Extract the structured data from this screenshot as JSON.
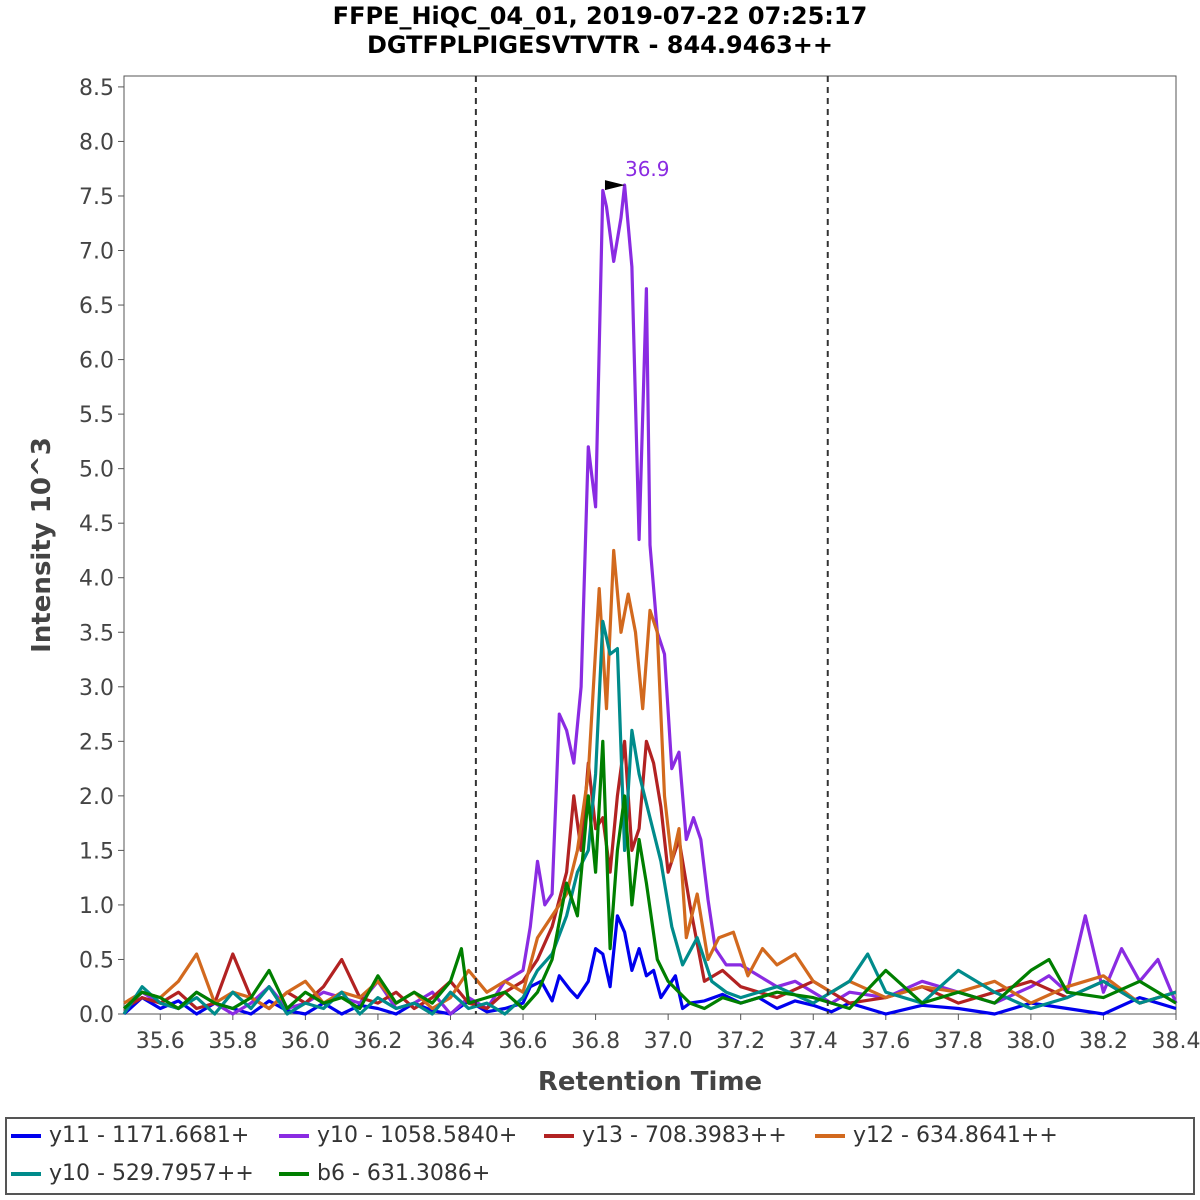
{
  "header": {
    "title_line1": "FFPE_HiQC_04_01, 2019-07-22 07:25:17",
    "title_line2": "DGTFPLPIGESVTVTR - 844.9463++"
  },
  "chart_data": {
    "type": "line",
    "xlabel": "Retention Time",
    "ylabel": "Intensity 10^3",
    "xlim": [
      35.5,
      38.4
    ],
    "ylim": [
      0,
      8.6
    ],
    "x_ticks": [
      "35.6",
      "35.8",
      "36.0",
      "36.2",
      "36.4",
      "36.6",
      "36.8",
      "37.0",
      "37.2",
      "37.4",
      "37.6",
      "37.8",
      "38.0",
      "38.2",
      "38.4"
    ],
    "y_ticks": [
      "0.0",
      "0.5",
      "1.0",
      "1.5",
      "2.0",
      "2.5",
      "3.0",
      "3.5",
      "4.0",
      "4.5",
      "5.0",
      "5.5",
      "6.0",
      "6.5",
      "7.0",
      "7.5",
      "8.0",
      "8.5"
    ],
    "boundaries": [
      36.47,
      37.44
    ],
    "peak_annotation": {
      "x": 36.87,
      "y": 7.6,
      "label": "36.9"
    },
    "grid": false,
    "legend_position": "bottom",
    "series": [
      {
        "name": "y11 - 1171.6681+",
        "color": "#0000ee",
        "x": [
          35.5,
          35.55,
          35.6,
          35.65,
          35.7,
          35.75,
          35.8,
          35.85,
          35.9,
          35.95,
          36.0,
          36.05,
          36.1,
          36.15,
          36.2,
          36.25,
          36.3,
          36.35,
          36.4,
          36.45,
          36.5,
          36.55,
          36.6,
          36.62,
          36.65,
          36.68,
          36.7,
          36.73,
          36.75,
          36.78,
          36.8,
          36.82,
          36.84,
          36.86,
          36.88,
          36.9,
          36.92,
          36.94,
          36.96,
          36.98,
          37.0,
          37.02,
          37.04,
          37.06,
          37.1,
          37.15,
          37.2,
          37.25,
          37.3,
          37.35,
          37.4,
          37.45,
          37.5,
          37.6,
          37.7,
          37.8,
          37.9,
          38.0,
          38.1,
          38.2,
          38.3,
          38.4
        ],
        "values": [
          0.0,
          0.15,
          0.05,
          0.12,
          0.0,
          0.1,
          0.05,
          0.0,
          0.12,
          0.03,
          0.0,
          0.1,
          0.0,
          0.08,
          0.05,
          0.0,
          0.1,
          0.03,
          0.0,
          0.12,
          0.02,
          0.05,
          0.1,
          0.25,
          0.3,
          0.12,
          0.35,
          0.22,
          0.15,
          0.3,
          0.6,
          0.55,
          0.25,
          0.9,
          0.75,
          0.4,
          0.6,
          0.35,
          0.4,
          0.15,
          0.25,
          0.35,
          0.05,
          0.1,
          0.12,
          0.18,
          0.1,
          0.15,
          0.05,
          0.12,
          0.08,
          0.02,
          0.1,
          0.0,
          0.08,
          0.05,
          0.0,
          0.1,
          0.05,
          0.0,
          0.15,
          0.05
        ]
      },
      {
        "name": "y10 - 1058.5840+",
        "color": "#8a2be2",
        "x": [
          35.5,
          35.55,
          35.6,
          35.65,
          35.7,
          35.75,
          35.8,
          35.85,
          35.9,
          35.95,
          36.0,
          36.05,
          36.1,
          36.15,
          36.2,
          36.25,
          36.3,
          36.35,
          36.4,
          36.45,
          36.5,
          36.55,
          36.6,
          36.62,
          36.64,
          36.66,
          36.68,
          36.7,
          36.72,
          36.74,
          36.76,
          36.78,
          36.8,
          36.82,
          36.83,
          36.85,
          36.87,
          36.88,
          36.9,
          36.92,
          36.94,
          36.95,
          36.97,
          36.99,
          37.01,
          37.03,
          37.05,
          37.07,
          37.09,
          37.11,
          37.13,
          37.16,
          37.2,
          37.25,
          37.3,
          37.35,
          37.4,
          37.45,
          37.5,
          37.6,
          37.7,
          37.8,
          37.9,
          38.0,
          38.05,
          38.1,
          38.15,
          38.2,
          38.25,
          38.3,
          38.35,
          38.4
        ],
        "values": [
          0.05,
          0.2,
          0.1,
          0.05,
          0.2,
          0.1,
          0.0,
          0.1,
          0.25,
          0.05,
          0.1,
          0.2,
          0.15,
          0.1,
          0.3,
          0.05,
          0.1,
          0.2,
          0.0,
          0.15,
          0.05,
          0.3,
          0.4,
          0.8,
          1.4,
          1.0,
          1.1,
          2.75,
          2.6,
          2.3,
          3.0,
          5.2,
          4.65,
          7.55,
          7.4,
          6.9,
          7.3,
          7.6,
          6.85,
          4.35,
          6.65,
          4.3,
          3.5,
          3.3,
          2.25,
          2.4,
          1.6,
          1.8,
          1.6,
          1.05,
          0.6,
          0.45,
          0.45,
          0.35,
          0.25,
          0.3,
          0.2,
          0.1,
          0.2,
          0.15,
          0.3,
          0.2,
          0.1,
          0.25,
          0.35,
          0.2,
          0.9,
          0.2,
          0.6,
          0.3,
          0.5,
          0.1
        ]
      },
      {
        "name": "y13 - 708.3983++",
        "color": "#b22222",
        "x": [
          35.5,
          35.55,
          35.6,
          35.65,
          35.7,
          35.75,
          35.8,
          35.85,
          35.9,
          35.95,
          36.0,
          36.05,
          36.1,
          36.15,
          36.2,
          36.25,
          36.3,
          36.35,
          36.4,
          36.45,
          36.5,
          36.55,
          36.6,
          36.64,
          36.68,
          36.72,
          36.74,
          36.76,
          36.78,
          36.8,
          36.82,
          36.84,
          36.86,
          36.88,
          36.9,
          36.92,
          36.94,
          36.96,
          36.98,
          37.0,
          37.03,
          37.06,
          37.1,
          37.15,
          37.2,
          37.3,
          37.4,
          37.5,
          37.6,
          37.7,
          37.8,
          37.9,
          38.0,
          38.1,
          38.2,
          38.3,
          38.4
        ],
        "values": [
          0.05,
          0.15,
          0.1,
          0.2,
          0.05,
          0.1,
          0.55,
          0.15,
          0.05,
          0.2,
          0.1,
          0.25,
          0.5,
          0.15,
          0.1,
          0.2,
          0.05,
          0.15,
          0.3,
          0.1,
          0.05,
          0.2,
          0.3,
          0.5,
          0.8,
          1.3,
          2.0,
          1.5,
          2.3,
          1.7,
          1.8,
          1.3,
          2.0,
          2.5,
          1.5,
          1.7,
          2.5,
          2.3,
          1.9,
          1.3,
          1.6,
          1.0,
          0.3,
          0.4,
          0.25,
          0.15,
          0.3,
          0.1,
          0.15,
          0.25,
          0.1,
          0.2,
          0.3,
          0.15,
          0.3,
          0.1,
          0.2
        ]
      },
      {
        "name": "y12 - 634.8641++",
        "color": "#d2691e",
        "x": [
          35.5,
          35.55,
          35.6,
          35.65,
          35.7,
          35.75,
          35.8,
          35.85,
          35.9,
          35.95,
          36.0,
          36.05,
          36.1,
          36.15,
          36.2,
          36.25,
          36.3,
          36.35,
          36.4,
          36.45,
          36.5,
          36.55,
          36.6,
          36.64,
          36.68,
          36.72,
          36.75,
          36.78,
          36.81,
          36.83,
          36.85,
          36.87,
          36.89,
          36.91,
          36.93,
          36.95,
          36.97,
          36.99,
          37.01,
          37.03,
          37.05,
          37.08,
          37.11,
          37.14,
          37.18,
          37.22,
          37.26,
          37.3,
          37.35,
          37.4,
          37.45,
          37.5,
          37.6,
          37.7,
          37.8,
          37.9,
          38.0,
          38.1,
          38.2,
          38.3,
          38.4
        ],
        "values": [
          0.1,
          0.2,
          0.15,
          0.3,
          0.55,
          0.1,
          0.2,
          0.15,
          0.05,
          0.2,
          0.3,
          0.1,
          0.2,
          0.15,
          0.3,
          0.1,
          0.2,
          0.05,
          0.15,
          0.4,
          0.2,
          0.3,
          0.2,
          0.7,
          0.9,
          1.1,
          1.5,
          2.2,
          3.9,
          2.8,
          4.25,
          3.5,
          3.85,
          3.5,
          2.8,
          3.7,
          3.5,
          2.0,
          1.4,
          1.7,
          0.7,
          1.1,
          0.5,
          0.7,
          0.75,
          0.35,
          0.6,
          0.45,
          0.55,
          0.3,
          0.2,
          0.3,
          0.15,
          0.25,
          0.2,
          0.3,
          0.1,
          0.25,
          0.35,
          0.1,
          0.2
        ]
      },
      {
        "name": "y10 - 529.7957++",
        "color": "#008b8b",
        "x": [
          35.5,
          35.55,
          35.6,
          35.65,
          35.7,
          35.75,
          35.8,
          35.85,
          35.9,
          35.95,
          36.0,
          36.05,
          36.1,
          36.15,
          36.2,
          36.25,
          36.3,
          36.35,
          36.4,
          36.45,
          36.5,
          36.55,
          36.6,
          36.64,
          36.68,
          36.72,
          36.75,
          36.78,
          36.8,
          36.82,
          36.84,
          36.86,
          36.88,
          36.9,
          36.92,
          36.95,
          36.98,
          37.01,
          37.04,
          37.08,
          37.12,
          37.16,
          37.2,
          37.3,
          37.4,
          37.5,
          37.55,
          37.6,
          37.7,
          37.8,
          37.9,
          38.0,
          38.1,
          38.2,
          38.3,
          38.4
        ],
        "values": [
          0.0,
          0.25,
          0.1,
          0.05,
          0.15,
          0.0,
          0.2,
          0.05,
          0.25,
          0.0,
          0.1,
          0.05,
          0.2,
          0.0,
          0.15,
          0.05,
          0.1,
          0.0,
          0.2,
          0.05,
          0.1,
          0.0,
          0.15,
          0.4,
          0.55,
          0.9,
          1.3,
          1.5,
          2.2,
          3.6,
          3.3,
          3.35,
          1.5,
          2.6,
          2.2,
          1.8,
          1.4,
          0.8,
          0.45,
          0.7,
          0.3,
          0.2,
          0.15,
          0.25,
          0.1,
          0.3,
          0.55,
          0.2,
          0.1,
          0.4,
          0.2,
          0.05,
          0.15,
          0.3,
          0.1,
          0.2
        ]
      },
      {
        "name": "b6 - 631.3086+",
        "color": "#007f00",
        "x": [
          35.5,
          35.55,
          35.6,
          35.65,
          35.7,
          35.75,
          35.8,
          35.85,
          35.9,
          35.95,
          36.0,
          36.05,
          36.1,
          36.15,
          36.2,
          36.25,
          36.3,
          36.35,
          36.4,
          36.43,
          36.45,
          36.5,
          36.55,
          36.6,
          36.64,
          36.68,
          36.72,
          36.75,
          36.78,
          36.8,
          36.82,
          36.84,
          36.86,
          36.88,
          36.9,
          36.92,
          36.94,
          36.97,
          37.0,
          37.03,
          37.06,
          37.1,
          37.15,
          37.2,
          37.3,
          37.4,
          37.5,
          37.6,
          37.7,
          37.8,
          37.9,
          38.0,
          38.05,
          38.1,
          38.2,
          38.3,
          38.4
        ],
        "values": [
          0.05,
          0.2,
          0.15,
          0.05,
          0.2,
          0.1,
          0.05,
          0.15,
          0.4,
          0.05,
          0.2,
          0.1,
          0.15,
          0.05,
          0.35,
          0.1,
          0.2,
          0.1,
          0.3,
          0.6,
          0.1,
          0.15,
          0.2,
          0.05,
          0.2,
          0.5,
          1.2,
          0.9,
          2.0,
          1.3,
          2.5,
          0.6,
          1.5,
          2.0,
          1.0,
          1.6,
          1.2,
          0.5,
          0.3,
          0.2,
          0.1,
          0.05,
          0.15,
          0.1,
          0.2,
          0.15,
          0.05,
          0.4,
          0.1,
          0.2,
          0.1,
          0.4,
          0.5,
          0.2,
          0.15,
          0.3,
          0.1
        ]
      }
    ]
  }
}
